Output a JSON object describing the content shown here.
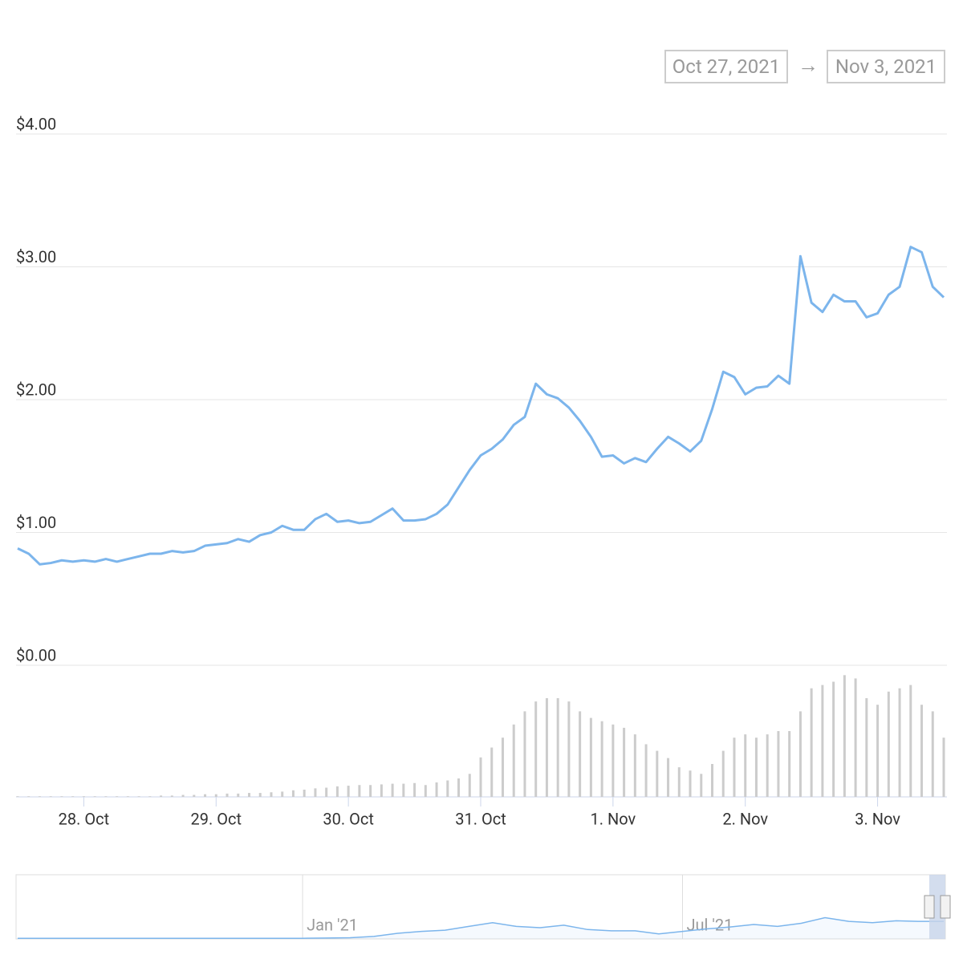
{
  "range": {
    "from": "Oct 27, 2021",
    "arrow": "→",
    "to": "Nov 3, 2021"
  },
  "chart_data": {
    "type": "line",
    "categories": [
      null,
      null,
      null,
      null,
      null,
      null,
      "28. Oct",
      null,
      null,
      null,
      null,
      null,
      null,
      null,
      null,
      null,
      null,
      null,
      "29. Oct",
      null,
      null,
      null,
      null,
      null,
      null,
      null,
      null,
      null,
      null,
      null,
      "30. Oct",
      null,
      null,
      null,
      null,
      null,
      null,
      null,
      null,
      null,
      null,
      null,
      "31. Oct",
      null,
      null,
      null,
      null,
      null,
      null,
      null,
      null,
      null,
      null,
      null,
      "1. Nov",
      null,
      null,
      null,
      null,
      null,
      null,
      null,
      null,
      null,
      null,
      null,
      "2. Nov",
      null,
      null,
      null,
      null,
      null,
      null,
      null,
      null,
      null,
      null,
      null,
      "3. Nov",
      null,
      null,
      null,
      null,
      null,
      null
    ],
    "ylim": [
      0,
      4
    ],
    "yticks": [
      {
        "value": 0,
        "label": "$0.00"
      },
      {
        "value": 1,
        "label": "$1.00"
      },
      {
        "value": 2,
        "label": "$2.00"
      },
      {
        "value": 3,
        "label": "$3.00"
      },
      {
        "value": 4,
        "label": "$4.00"
      }
    ],
    "grid": true,
    "y2lim": [
      0,
      200
    ],
    "series": [
      {
        "color": "#7cb5ec",
        "values": [
          0.88,
          0.84,
          0.76,
          0.77,
          0.79,
          0.78,
          0.79,
          0.78,
          0.8,
          0.78,
          0.8,
          0.82,
          0.84,
          0.84,
          0.86,
          0.85,
          0.86,
          0.9,
          0.91,
          0.92,
          0.95,
          0.93,
          0.98,
          1.0,
          1.05,
          1.02,
          1.02,
          1.1,
          1.14,
          1.08,
          1.09,
          1.07,
          1.08,
          1.13,
          1.18,
          1.09,
          1.09,
          1.1,
          1.14,
          1.21,
          1.34,
          1.47,
          1.58,
          1.63,
          1.7,
          1.81,
          1.87,
          2.12,
          2.04,
          2.01,
          1.94,
          1.84,
          1.72,
          1.57,
          1.58,
          1.52,
          1.56,
          1.53,
          1.63,
          1.72,
          1.67,
          1.61,
          1.69,
          1.93,
          2.21,
          2.17,
          2.04,
          2.09,
          2.1,
          2.18,
          2.12,
          3.08,
          2.73,
          2.66,
          2.79,
          2.74,
          2.74,
          2.62,
          2.65,
          2.79,
          2.85,
          3.15,
          3.11,
          2.85,
          2.77
        ]
      },
      {
        "type": "bar",
        "axis": "y2",
        "color": "#cccccc",
        "values": [
          1,
          1,
          1,
          1,
          1,
          1,
          1,
          1,
          1,
          1,
          1,
          1,
          1,
          2,
          2,
          3,
          3,
          4,
          4,
          5,
          5,
          6,
          6,
          7,
          8,
          10,
          11,
          13,
          14,
          16,
          17,
          18,
          18,
          19,
          20,
          20,
          21,
          18,
          22,
          25,
          28,
          35,
          60,
          75,
          90,
          110,
          130,
          145,
          150,
          150,
          145,
          130,
          120,
          115,
          110,
          105,
          95,
          80,
          70,
          59,
          45,
          40,
          35,
          50,
          70,
          90,
          95,
          90,
          95,
          100,
          100,
          130,
          165,
          170,
          175,
          185,
          180,
          150,
          140,
          160,
          165,
          170,
          140,
          130,
          90
        ]
      }
    ],
    "navigator": {
      "type": "area",
      "color": "#7cb5ec",
      "ylim": [
        0,
        10
      ],
      "categories": [
        null,
        null,
        null,
        null,
        null,
        null,
        null,
        null,
        null,
        null,
        null,
        null,
        "Jan '21",
        null,
        null,
        null,
        null,
        null,
        null,
        null,
        null,
        null,
        null,
        null,
        null,
        null,
        null,
        null,
        "Jul '21",
        null,
        null,
        null,
        null,
        null,
        null,
        null,
        null,
        null,
        null,
        null
      ],
      "values": [
        0.1,
        0.1,
        0.1,
        0.1,
        0.1,
        0.1,
        0.1,
        0.1,
        0.1,
        0.1,
        0.1,
        0.1,
        0.1,
        0.15,
        0.2,
        0.4,
        0.9,
        1.2,
        1.4,
        2.0,
        2.6,
        2.0,
        1.8,
        2.2,
        1.5,
        1.3,
        1.3,
        0.8,
        1.2,
        1.6,
        1.9,
        2.3,
        2.0,
        2.5,
        3.4,
        2.8,
        2.6,
        2.9,
        2.8,
        2.8
      ]
    }
  }
}
